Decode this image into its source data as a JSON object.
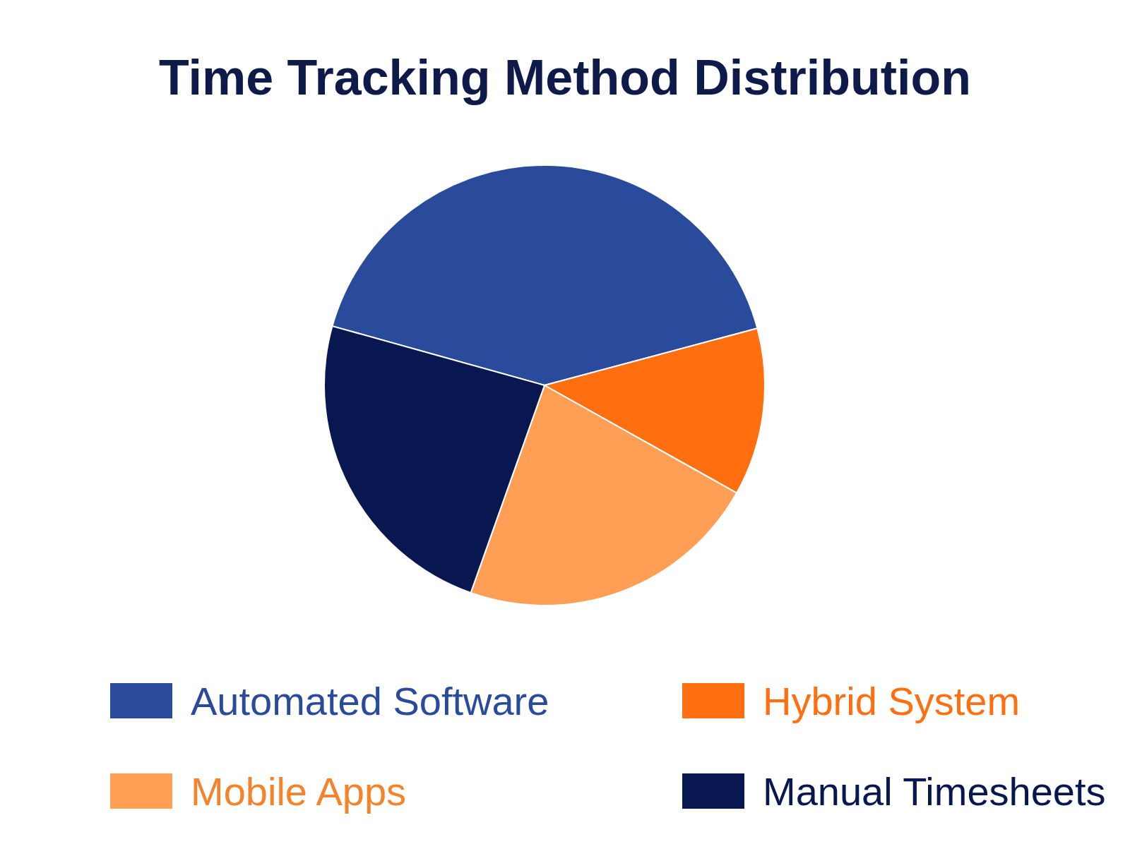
{
  "chart_data": {
    "type": "pie",
    "title": "Time Tracking Method Distribution",
    "categories": [
      "Automated Software",
      "Hybrid System",
      "Mobile Apps",
      "Manual Timesheets"
    ],
    "values": [
      41.5,
      12.3,
      22.3,
      23.9
    ],
    "colors": [
      "#2a4b9b",
      "#ff6f0f",
      "#ff9f55",
      "#08174f"
    ],
    "legend": "bottom"
  }
}
